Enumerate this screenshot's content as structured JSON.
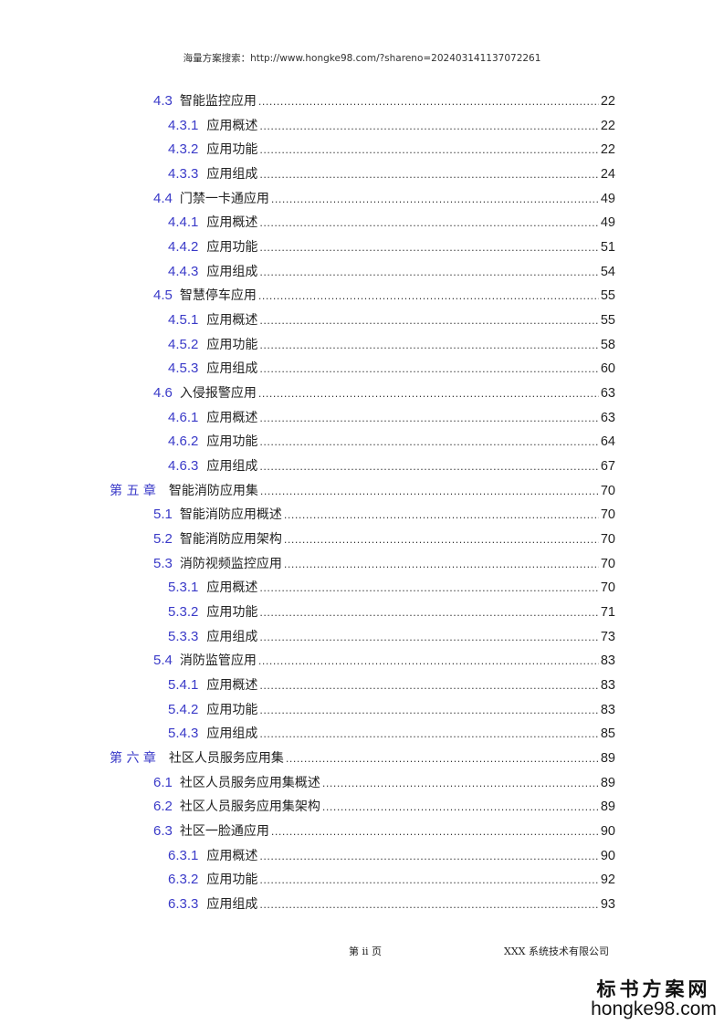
{
  "header": "海量方案搜索：http://www.hongke98.com/?shareno=202403141137072261",
  "toc": [
    {
      "level": 2,
      "num": "4.3",
      "title": "智能监控应用",
      "page": "22"
    },
    {
      "level": 3,
      "num": "4.3.1",
      "title": "应用概述",
      "page": "22"
    },
    {
      "level": 3,
      "num": "4.3.2",
      "title": "应用功能",
      "page": "22"
    },
    {
      "level": 3,
      "num": "4.3.3",
      "title": "应用组成",
      "page": "24"
    },
    {
      "level": 2,
      "num": "4.4",
      "title": "门禁一卡通应用",
      "page": "49"
    },
    {
      "level": 3,
      "num": "4.4.1",
      "title": "应用概述",
      "page": "49"
    },
    {
      "level": 3,
      "num": "4.4.2",
      "title": "应用功能",
      "page": "51"
    },
    {
      "level": 3,
      "num": "4.4.3",
      "title": "应用组成",
      "page": "54"
    },
    {
      "level": 2,
      "num": "4.5",
      "title": "智慧停车应用",
      "page": "55"
    },
    {
      "level": 3,
      "num": "4.5.1",
      "title": "应用概述",
      "page": "55"
    },
    {
      "level": 3,
      "num": "4.5.2",
      "title": "应用功能",
      "page": "58"
    },
    {
      "level": 3,
      "num": "4.5.3",
      "title": "应用组成",
      "page": "60"
    },
    {
      "level": 2,
      "num": "4.6",
      "title": "入侵报警应用",
      "page": "63"
    },
    {
      "level": 3,
      "num": "4.6.1",
      "title": "应用概述",
      "page": "63"
    },
    {
      "level": 3,
      "num": "4.6.2",
      "title": "应用功能",
      "page": "64"
    },
    {
      "level": 3,
      "num": "4.6.3",
      "title": "应用组成",
      "page": "67"
    },
    {
      "level": 1,
      "num": "第 五 章",
      "title": "智能消防应用集",
      "page": "70"
    },
    {
      "level": 2,
      "num": "5.1",
      "title": "智能消防应用概述",
      "page": "70"
    },
    {
      "level": 2,
      "num": "5.2",
      "title": "智能消防应用架构",
      "page": "70"
    },
    {
      "level": 2,
      "num": "5.3",
      "title": "消防视频监控应用",
      "page": "70"
    },
    {
      "level": 3,
      "num": "5.3.1",
      "title": "应用概述",
      "page": "70"
    },
    {
      "level": 3,
      "num": "5.3.2",
      "title": "应用功能",
      "page": "71"
    },
    {
      "level": 3,
      "num": "5.3.3",
      "title": "应用组成",
      "page": "73"
    },
    {
      "level": 2,
      "num": "5.4",
      "title": "消防监管应用",
      "page": "83"
    },
    {
      "level": 3,
      "num": "5.4.1",
      "title": "应用概述",
      "page": "83"
    },
    {
      "level": 3,
      "num": "5.4.2",
      "title": "应用功能",
      "page": "83"
    },
    {
      "level": 3,
      "num": "5.4.3",
      "title": "应用组成",
      "page": "85"
    },
    {
      "level": 1,
      "num": "第 六 章",
      "title": "社区人员服务应用集",
      "page": "89"
    },
    {
      "level": 2,
      "num": "6.1",
      "title": "社区人员服务应用集概述",
      "page": "89"
    },
    {
      "level": 2,
      "num": "6.2",
      "title": "社区人员服务应用集架构",
      "page": "89"
    },
    {
      "level": 2,
      "num": "6.3",
      "title": "社区一脸通应用",
      "page": "90"
    },
    {
      "level": 3,
      "num": "6.3.1",
      "title": "应用概述",
      "page": "90"
    },
    {
      "level": 3,
      "num": "6.3.2",
      "title": "应用功能",
      "page": "92"
    },
    {
      "level": 3,
      "num": "6.3.3",
      "title": "应用组成",
      "page": "93"
    }
  ],
  "footer": {
    "page": "第 ii 页",
    "company": "XXX 系统技术有限公司"
  },
  "watermark": {
    "line1": "标书方案网",
    "line2": "hongke98.com"
  },
  "colors": {
    "number": "#3a3ac8"
  }
}
